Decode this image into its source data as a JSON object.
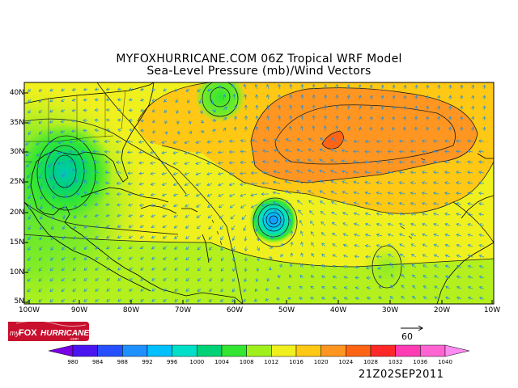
{
  "header": {
    "title_line1": "MYFOXHURRICANE.COM 06Z Tropical WRF Model",
    "title_line2": "Sea-Level Pressure (mb)/Wind Vectors"
  },
  "map": {
    "region": "Atlantic basin",
    "lat_labels": [
      "40N",
      "35N",
      "30N",
      "25N",
      "20N",
      "15N",
      "10N",
      "5N"
    ],
    "lon_labels": [
      "100W",
      "90W",
      "80W",
      "70W",
      "60W",
      "50W",
      "40W",
      "30W",
      "20W",
      "10W"
    ],
    "colors": {
      "land_outline": "#000000",
      "contour": "#1a1a1a",
      "vector": "#2a8fd6"
    },
    "features": [
      {
        "name": "low-pressure-gulf",
        "type": "low",
        "lat": 27.5,
        "lon": -93
      },
      {
        "name": "tropical-cyclone",
        "type": "low",
        "lat": 18.5,
        "lon": -53
      },
      {
        "name": "low-pressure-north",
        "type": "low",
        "lat": 39,
        "lon": -63
      },
      {
        "name": "subtropical-high",
        "type": "high",
        "lat": 31,
        "lon": -39
      },
      {
        "name": "low-pressure-east",
        "type": "low",
        "lat": 13,
        "lon": -33
      }
    ]
  },
  "reference_vector": {
    "value": "60"
  },
  "colorbar": {
    "levels": [
      "980",
      "984",
      "988",
      "992",
      "996",
      "1000",
      "1004",
      "1008",
      "1012",
      "1016",
      "1020",
      "1024",
      "1028",
      "1032",
      "1036",
      "1040"
    ],
    "colors": [
      "#7a00e6",
      "#4a14f0",
      "#2650ff",
      "#1e90ff",
      "#00c0ff",
      "#00e0c8",
      "#00d278",
      "#32e632",
      "#a0f01e",
      "#f0f01e",
      "#ffc814",
      "#ff9622",
      "#ff6414",
      "#ff2828",
      "#ff3cb4",
      "#ff64d2",
      "#ff8cf0"
    ]
  },
  "logo": {
    "prefix": "my",
    "brand": "FOX",
    "name": "HURRICANE",
    "suffix": ".com"
  },
  "datestamp": "21Z02SEP2011"
}
